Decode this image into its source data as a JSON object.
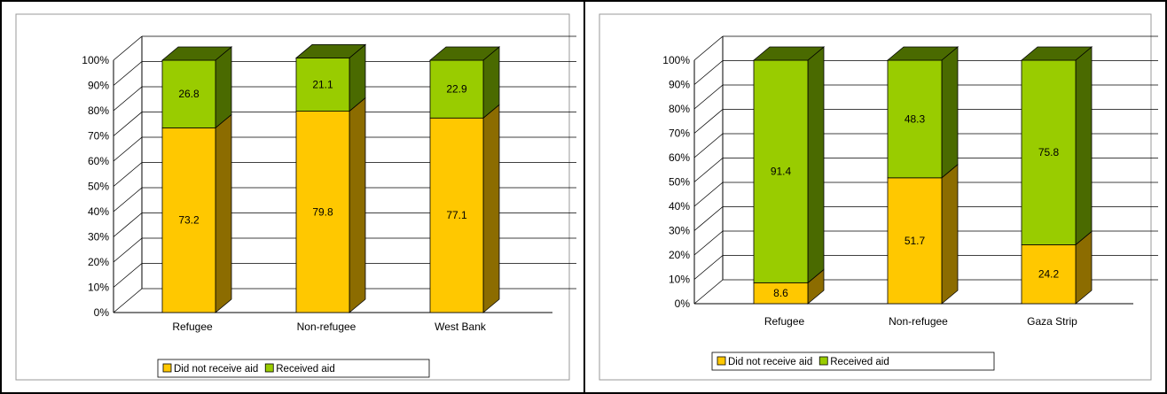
{
  "colors": {
    "did_not_receive": "#FFC800",
    "did_not_receive_side": "#8C6C00",
    "did_not_receive_top": "#FFD84A",
    "received": "#99CC00",
    "received_side": "#4A6A00",
    "received_top": "#B8E030",
    "grid": "#000000",
    "panel_border": "#9A9A9A"
  },
  "chart_data": [
    {
      "type": "bar",
      "stacked": true,
      "three_d": true,
      "categories": [
        "Refugee",
        "Non-refugee",
        "West Bank"
      ],
      "series": [
        {
          "name": "Did not receive aid",
          "values": [
            73.2,
            79.8,
            77.1
          ]
        },
        {
          "name": "Received aid",
          "values": [
            26.8,
            21.1,
            22.9
          ]
        }
      ],
      "data_labels": {
        "did_not_receive": [
          "73.2",
          "79.8",
          "77.1"
        ],
        "received": [
          "26.8",
          "21.1",
          "22.9"
        ]
      },
      "ylim": [
        0,
        100
      ],
      "yticks": [
        "0%",
        "10%",
        "20%",
        "30%",
        "40%",
        "50%",
        "60%",
        "70%",
        "80%",
        "90%",
        "100%"
      ],
      "grid": true,
      "legend": {
        "placement": "bottom",
        "items": [
          "Did not receive aid",
          "Received aid"
        ]
      }
    },
    {
      "type": "bar",
      "stacked": true,
      "three_d": true,
      "categories": [
        "Refugee",
        "Non-refugee",
        "Gaza Strip"
      ],
      "series": [
        {
          "name": "Did not receive aid",
          "values": [
            8.6,
            51.7,
            24.2
          ]
        },
        {
          "name": "Received aid",
          "values": [
            91.4,
            48.3,
            75.8
          ]
        }
      ],
      "data_labels": {
        "did_not_receive": [
          "8.6",
          "51.7",
          "24.2"
        ],
        "received": [
          "91.4",
          "48.3",
          "75.8"
        ]
      },
      "ylim": [
        0,
        100
      ],
      "yticks": [
        "0%",
        "10%",
        "20%",
        "30%",
        "40%",
        "50%",
        "60%",
        "70%",
        "80%",
        "90%",
        "100%"
      ],
      "grid": true,
      "legend": {
        "placement": "bottom",
        "items": [
          "Did not receive aid",
          "Received aid"
        ]
      }
    }
  ]
}
